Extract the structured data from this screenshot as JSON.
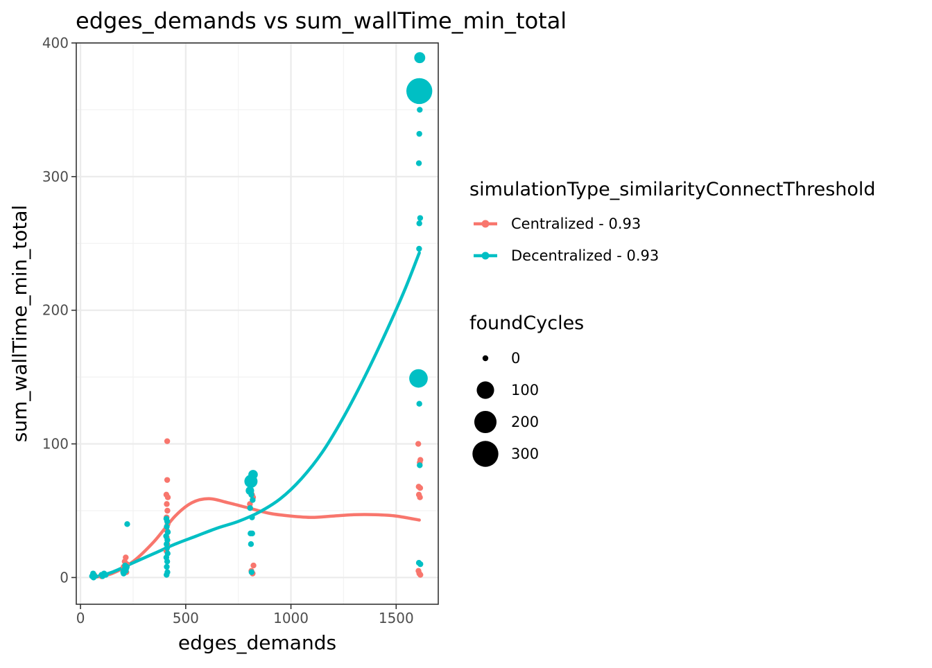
{
  "chart_data": {
    "type": "scatter",
    "title": "edges_demands  vs  sum_wallTime_min_total",
    "xlabel": "edges_demands",
    "ylabel": "sum_wallTime_min_total",
    "xlim": [
      -20,
      1700
    ],
    "ylim": [
      -20,
      400
    ],
    "x_ticks": [
      0,
      500,
      1000,
      1500
    ],
    "x_tick_labels": [
      "0",
      "500",
      "1000",
      "1500"
    ],
    "y_ticks": [
      0,
      100,
      200,
      300,
      400
    ],
    "y_tick_labels": [
      "0",
      "100",
      "200",
      "300",
      "400"
    ],
    "grid": true,
    "legend_position": "right",
    "color_legend": {
      "title": "simulationType_similarityConnectThreshold",
      "entries": [
        {
          "label": "Centralized - 0.93",
          "color": "#F8766D"
        },
        {
          "label": "Decentralized - 0.93",
          "color": "#00BFC4"
        }
      ]
    },
    "size_legend": {
      "title": "foundCycles",
      "entries": [
        {
          "label": "0",
          "value": 0
        },
        {
          "label": "100",
          "value": 100
        },
        {
          "label": "200",
          "value": 200
        },
        {
          "label": "300",
          "value": 300
        }
      ]
    },
    "series": [
      {
        "name": "Centralized - 0.93",
        "color": "#F8766D",
        "points": [
          {
            "x": 60,
            "y": 1,
            "size": 0
          },
          {
            "x": 65,
            "y": 2,
            "size": 0
          },
          {
            "x": 100,
            "y": 1,
            "size": 0
          },
          {
            "x": 110,
            "y": 2,
            "size": 0
          },
          {
            "x": 205,
            "y": 8,
            "size": 0
          },
          {
            "x": 210,
            "y": 12,
            "size": 0
          },
          {
            "x": 215,
            "y": 15,
            "size": 0
          },
          {
            "x": 220,
            "y": 10,
            "size": 0
          },
          {
            "x": 212,
            "y": 6,
            "size": 0
          },
          {
            "x": 218,
            "y": 4,
            "size": 0
          },
          {
            "x": 412,
            "y": 102,
            "size": 0
          },
          {
            "x": 412,
            "y": 73,
            "size": 0
          },
          {
            "x": 408,
            "y": 62,
            "size": 0
          },
          {
            "x": 415,
            "y": 60,
            "size": 0
          },
          {
            "x": 410,
            "y": 55,
            "size": 0
          },
          {
            "x": 413,
            "y": 50,
            "size": 0
          },
          {
            "x": 409,
            "y": 45,
            "size": 0
          },
          {
            "x": 414,
            "y": 40,
            "size": 0
          },
          {
            "x": 411,
            "y": 35,
            "size": 0
          },
          {
            "x": 410,
            "y": 30,
            "size": 0
          },
          {
            "x": 412,
            "y": 25,
            "size": 0
          },
          {
            "x": 408,
            "y": 20,
            "size": 0
          },
          {
            "x": 815,
            "y": 62,
            "size": 0
          },
          {
            "x": 820,
            "y": 60,
            "size": 0
          },
          {
            "x": 805,
            "y": 55,
            "size": 0
          },
          {
            "x": 822,
            "y": 9,
            "size": 0
          },
          {
            "x": 812,
            "y": 5,
            "size": 0
          },
          {
            "x": 818,
            "y": 3,
            "size": 0
          },
          {
            "x": 1605,
            "y": 100,
            "size": 0
          },
          {
            "x": 1615,
            "y": 88,
            "size": 0
          },
          {
            "x": 1612,
            "y": 86,
            "size": 0
          },
          {
            "x": 1607,
            "y": 68,
            "size": 0
          },
          {
            "x": 1614,
            "y": 67,
            "size": 0
          },
          {
            "x": 1608,
            "y": 62,
            "size": 0
          },
          {
            "x": 1613,
            "y": 60,
            "size": 0
          },
          {
            "x": 1606,
            "y": 5,
            "size": 0
          },
          {
            "x": 1610,
            "y": 3,
            "size": 0
          },
          {
            "x": 1615,
            "y": 2,
            "size": 0
          }
        ],
        "smooth": [
          {
            "x": 60,
            "y": 0
          },
          {
            "x": 150,
            "y": 3
          },
          {
            "x": 250,
            "y": 12
          },
          {
            "x": 350,
            "y": 27
          },
          {
            "x": 450,
            "y": 46
          },
          {
            "x": 530,
            "y": 56
          },
          {
            "x": 610,
            "y": 59
          },
          {
            "x": 700,
            "y": 56
          },
          {
            "x": 800,
            "y": 52
          },
          {
            "x": 900,
            "y": 48
          },
          {
            "x": 1000,
            "y": 46
          },
          {
            "x": 1100,
            "y": 45
          },
          {
            "x": 1200,
            "y": 46
          },
          {
            "x": 1300,
            "y": 47
          },
          {
            "x": 1400,
            "y": 47
          },
          {
            "x": 1500,
            "y": 46
          },
          {
            "x": 1610,
            "y": 43
          }
        ]
      },
      {
        "name": "Decentralized - 0.93",
        "color": "#00BFC4",
        "points": [
          {
            "x": 55,
            "y": 1,
            "size": 0
          },
          {
            "x": 60,
            "y": 3,
            "size": 0
          },
          {
            "x": 62,
            "y": 0,
            "size": 0
          },
          {
            "x": 68,
            "y": 1,
            "size": 0
          },
          {
            "x": 100,
            "y": 2,
            "size": 0
          },
          {
            "x": 105,
            "y": 1,
            "size": 0
          },
          {
            "x": 112,
            "y": 3,
            "size": 0
          },
          {
            "x": 120,
            "y": 2,
            "size": 0
          },
          {
            "x": 205,
            "y": 3,
            "size": 0
          },
          {
            "x": 208,
            "y": 6,
            "size": 0
          },
          {
            "x": 212,
            "y": 9,
            "size": 0
          },
          {
            "x": 215,
            "y": 5,
            "size": 0
          },
          {
            "x": 220,
            "y": 8,
            "size": 0
          },
          {
            "x": 222,
            "y": 40,
            "size": 0
          },
          {
            "x": 203,
            "y": 4,
            "size": 0
          },
          {
            "x": 218,
            "y": 7,
            "size": 0
          },
          {
            "x": 408,
            "y": 44,
            "size": 0
          },
          {
            "x": 412,
            "y": 42,
            "size": 0
          },
          {
            "x": 410,
            "y": 38,
            "size": 0
          },
          {
            "x": 415,
            "y": 34,
            "size": 0
          },
          {
            "x": 407,
            "y": 31,
            "size": 0
          },
          {
            "x": 413,
            "y": 28,
            "size": 0
          },
          {
            "x": 409,
            "y": 25,
            "size": 0
          },
          {
            "x": 411,
            "y": 22,
            "size": 0
          },
          {
            "x": 414,
            "y": 18,
            "size": 0
          },
          {
            "x": 408,
            "y": 15,
            "size": 0
          },
          {
            "x": 412,
            "y": 12,
            "size": 0
          },
          {
            "x": 410,
            "y": 8,
            "size": 0
          },
          {
            "x": 413,
            "y": 4,
            "size": 0
          },
          {
            "x": 409,
            "y": 2,
            "size": 0
          },
          {
            "x": 810,
            "y": 72,
            "size": 40
          },
          {
            "x": 820,
            "y": 77,
            "size": 10
          },
          {
            "x": 805,
            "y": 65,
            "size": 5
          },
          {
            "x": 812,
            "y": 62,
            "size": 0
          },
          {
            "x": 818,
            "y": 58,
            "size": 0
          },
          {
            "x": 806,
            "y": 52,
            "size": 0
          },
          {
            "x": 815,
            "y": 45,
            "size": 0
          },
          {
            "x": 808,
            "y": 33,
            "size": 0
          },
          {
            "x": 816,
            "y": 33,
            "size": 0
          },
          {
            "x": 810,
            "y": 25,
            "size": 0
          },
          {
            "x": 813,
            "y": 4,
            "size": 0
          },
          {
            "x": 1612,
            "y": 389,
            "size": 20
          },
          {
            "x": 1610,
            "y": 364,
            "size": 300
          },
          {
            "x": 1612,
            "y": 350,
            "size": 0
          },
          {
            "x": 1610,
            "y": 332,
            "size": 0
          },
          {
            "x": 1608,
            "y": 310,
            "size": 0
          },
          {
            "x": 1614,
            "y": 269,
            "size": 0
          },
          {
            "x": 1610,
            "y": 265,
            "size": 0
          },
          {
            "x": 1609,
            "y": 246,
            "size": 0
          },
          {
            "x": 1606,
            "y": 149,
            "size": 120
          },
          {
            "x": 1610,
            "y": 130,
            "size": 0
          },
          {
            "x": 1612,
            "y": 84,
            "size": 0
          },
          {
            "x": 1608,
            "y": 11,
            "size": 0
          },
          {
            "x": 1615,
            "y": 10,
            "size": 0
          }
        ],
        "smooth": [
          {
            "x": 60,
            "y": 0
          },
          {
            "x": 150,
            "y": 4
          },
          {
            "x": 250,
            "y": 11
          },
          {
            "x": 350,
            "y": 18
          },
          {
            "x": 450,
            "y": 25
          },
          {
            "x": 550,
            "y": 31
          },
          {
            "x": 650,
            "y": 37
          },
          {
            "x": 750,
            "y": 42
          },
          {
            "x": 850,
            "y": 49
          },
          {
            "x": 950,
            "y": 59
          },
          {
            "x": 1050,
            "y": 74
          },
          {
            "x": 1150,
            "y": 94
          },
          {
            "x": 1250,
            "y": 120
          },
          {
            "x": 1350,
            "y": 150
          },
          {
            "x": 1450,
            "y": 183
          },
          {
            "x": 1540,
            "y": 215
          },
          {
            "x": 1610,
            "y": 243
          }
        ]
      }
    ]
  }
}
